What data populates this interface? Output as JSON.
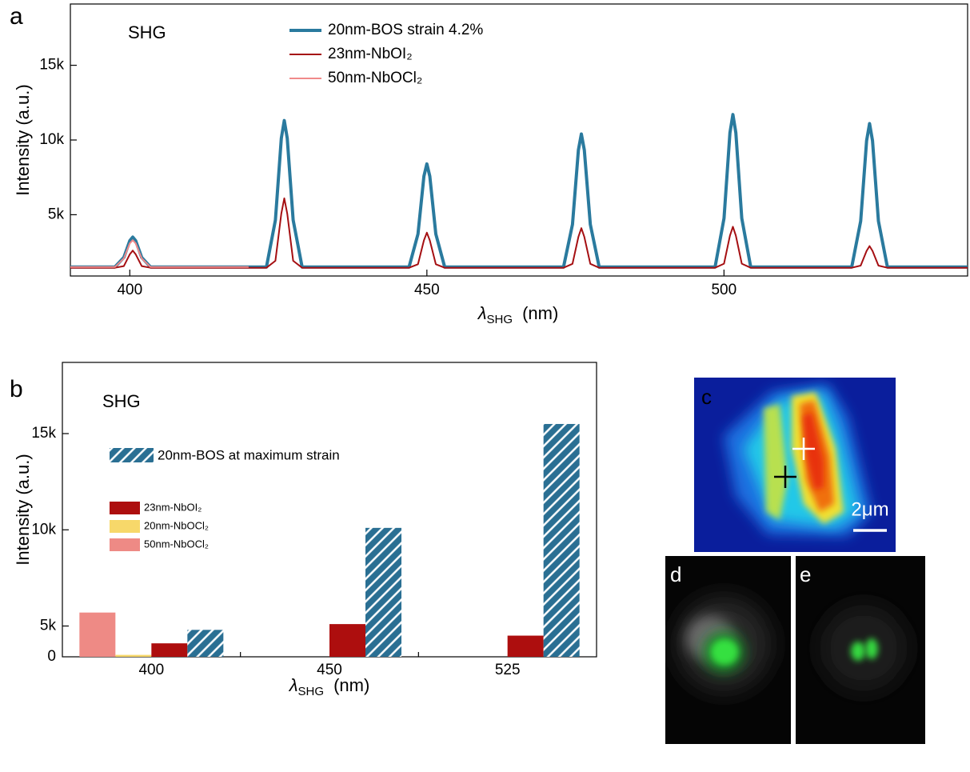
{
  "chart_data": [
    {
      "type": "line",
      "panel_label": "a",
      "annotation": "SHG",
      "xlabel": {
        "symbol": "λ",
        "subscript": "SHG",
        "unit": "(nm)"
      },
      "ylabel": "Intensity (a.u.)",
      "x": [
        390,
        397.5,
        399,
        400,
        400.5,
        401,
        402,
        403.5,
        420,
        423,
        424.5,
        425.5,
        426,
        426.5,
        427.5,
        429,
        447,
        448.5,
        449.5,
        450,
        450.5,
        451.5,
        453,
        473,
        474.5,
        475.5,
        476,
        476.5,
        477.5,
        479,
        498.5,
        500,
        501,
        501.5,
        502,
        503,
        504.5,
        521.5,
        523,
        524,
        524.5,
        525,
        526,
        527.5,
        541
      ],
      "series": [
        {
          "name": "20nm-BOS strain 4.2%",
          "color": "#2a7a9e",
          "line_width": 4,
          "values": [
            1500,
            1500,
            2140,
            3260,
            3500,
            3260,
            2140,
            1500,
            1500,
            1500,
            4640,
            10120,
            11300,
            10120,
            4640,
            1500,
            1500,
            3710,
            7570,
            8400,
            7570,
            3710,
            1500,
            1500,
            4350,
            9330,
            10400,
            9330,
            4350,
            1500,
            1500,
            4760,
            10480,
            11700,
            10480,
            4760,
            1500,
            1500,
            4570,
            9950,
            11100,
            9950,
            4570,
            1500,
            1500
          ]
        },
        {
          "name": "23nm-NbOI₂",
          "color": "#a50f12",
          "line_width": 2,
          "values": [
            1450,
            1450,
            1565,
            2350,
            2600,
            2350,
            1565,
            1450,
            1450,
            1450,
            1915,
            5080,
            6100,
            5080,
            1915,
            1450,
            1450,
            1685,
            3280,
            3800,
            3280,
            1685,
            1450,
            1450,
            1715,
            3520,
            4100,
            3520,
            1715,
            1450,
            1450,
            1725,
            3600,
            4200,
            3600,
            1725,
            1450,
            1450,
            1595,
            2580,
            2900,
            2580,
            1595,
            1450,
            1450
          ]
        },
        {
          "name": "50nm-NbOCl₂",
          "color": "#f08a8a",
          "line_width": 2,
          "values": [
            1500,
            1500,
            2080,
            3080,
            3300,
            3080,
            2080,
            1500,
            1500,
            null,
            null,
            null,
            null,
            null,
            null,
            null,
            null,
            null,
            null,
            null,
            null,
            null,
            null,
            null,
            null,
            null,
            null,
            null,
            null,
            null,
            null,
            null,
            null,
            null,
            null,
            null,
            null,
            null,
            null,
            null,
            null,
            null,
            null,
            null,
            null
          ]
        }
      ],
      "xlim": [
        390,
        541
      ],
      "ylim": [
        900,
        19100
      ],
      "xticks": [
        400,
        450,
        500
      ],
      "yticks": [
        {
          "value": 5000,
          "label": "5k"
        },
        {
          "value": 10000,
          "label": "10k"
        },
        {
          "value": 15000,
          "label": "15k"
        }
      ]
    },
    {
      "type": "bar",
      "panel_label": "b",
      "annotation": "SHG",
      "xlabel": {
        "symbol": "λ",
        "subscript": "SHG",
        "unit": "(nm)"
      },
      "ylabel": "Intensity (a.u.)",
      "categories": [
        "400",
        "450",
        "525"
      ],
      "series": [
        {
          "name": "50nm-NbOCl₂",
          "color": "#ee8a85",
          "values": [
            5700,
            null,
            null
          ]
        },
        {
          "name": "20nm-NbOCl₂",
          "color": "#f7d86a",
          "values": [
            3500,
            null,
            null
          ]
        },
        {
          "name": "23nm-NbOI₂",
          "color": "#ad0e0e",
          "values": [
            4100,
            5100,
            4500
          ]
        },
        {
          "name": "20nm-BOS at maximum strain",
          "color": "#2a6f93",
          "hatch": true,
          "values": [
            4800,
            10100,
            15500
          ]
        }
      ],
      "ylim": [
        3400,
        18700
      ],
      "yticks": [
        {
          "value": 5000,
          "label": "5k"
        },
        {
          "value": 10000,
          "label": "10k"
        },
        {
          "value": 15000,
          "label": "15k"
        }
      ],
      "y_bottom_label": "0"
    }
  ],
  "images": {
    "c": {
      "panel_label": "c",
      "scale_bar_label": "2μm"
    },
    "d": {
      "panel_label": "d"
    },
    "e": {
      "panel_label": "e"
    }
  }
}
